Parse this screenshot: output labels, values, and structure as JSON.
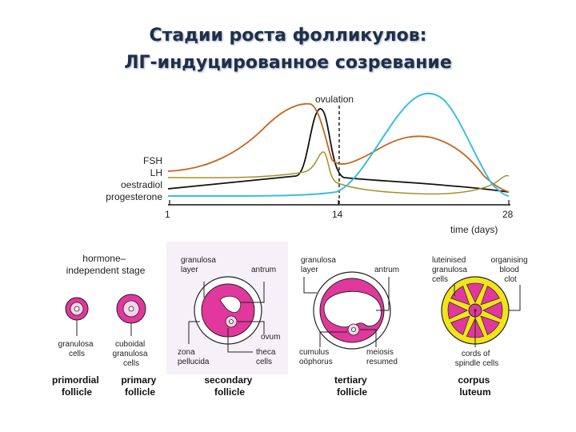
{
  "title": {
    "line1": "Стадии роста фолликулов:",
    "line2": "ЛГ-индуцированное созревание"
  },
  "chart": {
    "ovulation_label": "ovulation",
    "x_axis_label": "time (days)",
    "x_ticks": [
      "1",
      "14",
      "28"
    ],
    "hormones": [
      "FSH",
      "LH",
      "oestradiol",
      "progesterone"
    ],
    "colors": {
      "FSH": "#111111",
      "LH": "#c8641e",
      "oestradiol": "#a4902a",
      "progesterone": "#3cbde0"
    }
  },
  "stages": {
    "hormone_independent": "hormone–\nindependent stage",
    "primordial": {
      "caption": "primordial\nfollicle",
      "labels": {
        "granulosa_cells": "granulosa\ncells"
      }
    },
    "primary": {
      "caption": "primary\nfollicle",
      "labels": {
        "cuboidal": "cuboidal\ngranulosa\ncells"
      }
    },
    "secondary": {
      "caption": "secondary\nfollicle",
      "labels": {
        "granulosa_layer": "granulosa\nlayer",
        "antrum": "antrum",
        "ovum": "ovum",
        "zona_pellucida": "zona\npellucida",
        "theca_cells": "theca\ncells"
      }
    },
    "tertiary": {
      "caption": "tertiary\nfollicle",
      "labels": {
        "granulosa_layer": "granulosa\nlayer",
        "antrum": "antrum",
        "cumulus": "cumulus\noöphorus",
        "meiosis": "meiosis\nresumed"
      }
    },
    "corpus": {
      "caption": "corpus\nluteum",
      "labels": {
        "luteinised": "luteinised\ngranulosa\ncells",
        "organising": "organising\nblood\nclot",
        "cords": "cords of\nspindle cells"
      }
    }
  },
  "colors": {
    "pink": "#e0389c",
    "pink_light": "#f7d2e8",
    "yellow": "#f2e31a",
    "outline": "#222222",
    "title": "#1f2f4a"
  }
}
